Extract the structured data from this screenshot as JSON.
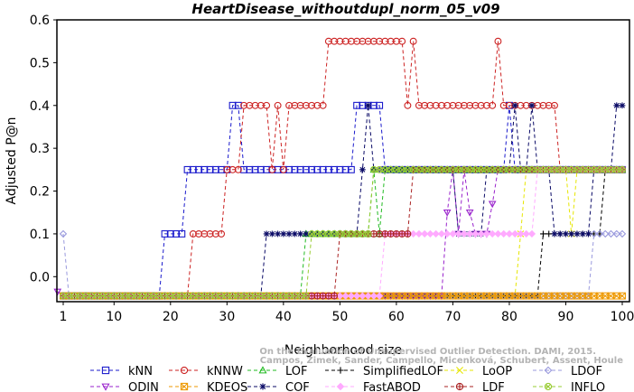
{
  "chart_data": {
    "type": "line",
    "title": "HeartDisease_withoutdupl_norm_05_v09",
    "xlabel": "Neighborhood size",
    "ylabel": "Adjusted P@n",
    "xlim": [
      1,
      100
    ],
    "ylim": [
      -0.05,
      0.6
    ],
    "xticks": [
      "1",
      "10",
      "20",
      "30",
      "40",
      "50",
      "60",
      "70",
      "80",
      "90",
      "100"
    ],
    "yticks": [
      "0.0",
      "0.1",
      "0.2",
      "0.3",
      "0.4",
      "0.5",
      "0.6"
    ],
    "grid": false,
    "legend_position": "bottom",
    "series": [
      {
        "name": "kNN",
        "color": "#1a1acc",
        "marker": "square",
        "points": [
          [
            1,
            -0.045
          ],
          [
            18,
            -0.045
          ],
          [
            19,
            0.1
          ],
          [
            22,
            0.1
          ],
          [
            23,
            0.25
          ],
          [
            30,
            0.25
          ],
          [
            31,
            0.4
          ],
          [
            32,
            0.4
          ],
          [
            33,
            0.25
          ],
          [
            52,
            0.25
          ],
          [
            53,
            0.4
          ],
          [
            57,
            0.4
          ],
          [
            58,
            0.25
          ],
          [
            79,
            0.25
          ],
          [
            80,
            0.4
          ],
          [
            81,
            0.25
          ],
          [
            100,
            0.25
          ]
        ]
      },
      {
        "name": "kNNW",
        "color": "#cc2222",
        "marker": "circle",
        "points": [
          [
            1,
            -0.045
          ],
          [
            23,
            -0.045
          ],
          [
            24,
            0.1
          ],
          [
            29,
            0.1
          ],
          [
            30,
            0.25
          ],
          [
            33,
            0.4
          ],
          [
            37,
            0.4
          ],
          [
            38,
            0.25
          ],
          [
            39,
            0.4
          ],
          [
            40,
            0.25
          ],
          [
            41,
            0.4
          ],
          [
            47,
            0.4
          ],
          [
            48,
            0.55
          ],
          [
            61,
            0.55
          ],
          [
            62,
            0.4
          ],
          [
            63,
            0.55
          ],
          [
            64,
            0.4
          ],
          [
            77,
            0.4
          ],
          [
            78,
            0.55
          ],
          [
            79,
            0.4
          ],
          [
            88,
            0.4
          ],
          [
            89,
            0.25
          ],
          [
            100,
            0.25
          ]
        ]
      },
      {
        "name": "LOF",
        "color": "#22bb22",
        "marker": "triangle-up",
        "points": [
          [
            1,
            -0.045
          ],
          [
            43,
            -0.045
          ],
          [
            44,
            0.1
          ],
          [
            55,
            0.1
          ],
          [
            56,
            0.25
          ],
          [
            57,
            0.1
          ],
          [
            58,
            0.25
          ],
          [
            100,
            0.25
          ]
        ]
      },
      {
        "name": "SimplifiedLOF",
        "color": "#000000",
        "marker": "plus",
        "points": [
          [
            1,
            -0.045
          ],
          [
            51,
            -0.045
          ],
          [
            85,
            -0.045
          ],
          [
            86,
            0.1
          ],
          [
            96,
            0.1
          ],
          [
            97,
            0.25
          ],
          [
            100,
            0.25
          ]
        ]
      },
      {
        "name": "LoOP",
        "color": "#e6e600",
        "marker": "cross",
        "points": [
          [
            1,
            -0.045
          ],
          [
            81,
            -0.045
          ],
          [
            82,
            0.1
          ],
          [
            83,
            0.25
          ],
          [
            90,
            0.25
          ],
          [
            91,
            0.1
          ],
          [
            92,
            0.25
          ],
          [
            100,
            0.25
          ]
        ]
      },
      {
        "name": "LDOF",
        "color": "#9999dd",
        "marker": "diamond",
        "points": [
          [
            1,
            0.1
          ],
          [
            2,
            -0.045
          ],
          [
            94,
            -0.045
          ],
          [
            95,
            0.1
          ],
          [
            100,
            0.1
          ]
        ]
      },
      {
        "name": "ODIN",
        "color": "#9922cc",
        "marker": "triangle-down",
        "points": [
          [
            0,
            -0.035
          ],
          [
            1,
            -0.045
          ],
          [
            68,
            -0.045
          ],
          [
            69,
            0.15
          ],
          [
            70,
            0.25
          ],
          [
            71,
            0.1
          ],
          [
            72,
            0.25
          ],
          [
            73,
            0.15
          ],
          [
            74,
            0.1
          ],
          [
            76,
            0.1
          ],
          [
            77,
            0.17
          ],
          [
            78,
            0.25
          ],
          [
            100,
            0.25
          ]
        ]
      },
      {
        "name": "KDEOS",
        "color": "#ee9900",
        "marker": "square-x",
        "points": [
          [
            1,
            -0.045
          ],
          [
            100,
            -0.045
          ]
        ]
      },
      {
        "name": "COF",
        "color": "#0a0a66",
        "marker": "star",
        "points": [
          [
            1,
            -0.045
          ],
          [
            36,
            -0.045
          ],
          [
            37,
            0.1
          ],
          [
            43,
            0.1
          ],
          [
            44,
            0.1
          ],
          [
            53,
            0.1
          ],
          [
            54,
            0.25
          ],
          [
            55,
            0.4
          ],
          [
            56,
            0.25
          ],
          [
            70,
            0.25
          ],
          [
            71,
            0.1
          ],
          [
            75,
            0.1
          ],
          [
            76,
            0.25
          ],
          [
            80,
            0.25
          ],
          [
            81,
            0.4
          ],
          [
            82,
            0.25
          ],
          [
            84,
            0.4
          ],
          [
            85,
            0.25
          ],
          [
            88,
            0.1
          ],
          [
            95,
            0.25
          ],
          [
            99,
            0.4
          ],
          [
            100,
            0.4
          ]
        ]
      },
      {
        "name": "FastABOD",
        "color": "#ffaaff",
        "marker": "diamond-filled",
        "points": [
          [
            1,
            -0.045
          ],
          [
            57,
            -0.045
          ],
          [
            58,
            0.1
          ],
          [
            84,
            0.1
          ],
          [
            85,
            0.25
          ],
          [
            100,
            0.25
          ]
        ]
      },
      {
        "name": "LDF",
        "color": "#aa2222",
        "marker": "circle-plus",
        "points": [
          [
            1,
            -0.045
          ],
          [
            49,
            -0.045
          ],
          [
            50,
            0.1
          ],
          [
            62,
            0.1
          ],
          [
            63,
            0.25
          ],
          [
            100,
            0.25
          ]
        ]
      },
      {
        "name": "INFLO",
        "color": "#99cc33",
        "marker": "circle-x",
        "points": [
          [
            1,
            -0.045
          ],
          [
            44,
            -0.045
          ],
          [
            45,
            0.1
          ],
          [
            55,
            0.1
          ],
          [
            56,
            0.25
          ],
          [
            100,
            0.25
          ]
        ]
      }
    ],
    "watermark": [
      "Campos, Zimek, Sander, Campello, Micenková, Schubert, Assent, Houle",
      "On the Evaluation of Unsupervised Outlier Detection. DAMI, 2015."
    ]
  }
}
